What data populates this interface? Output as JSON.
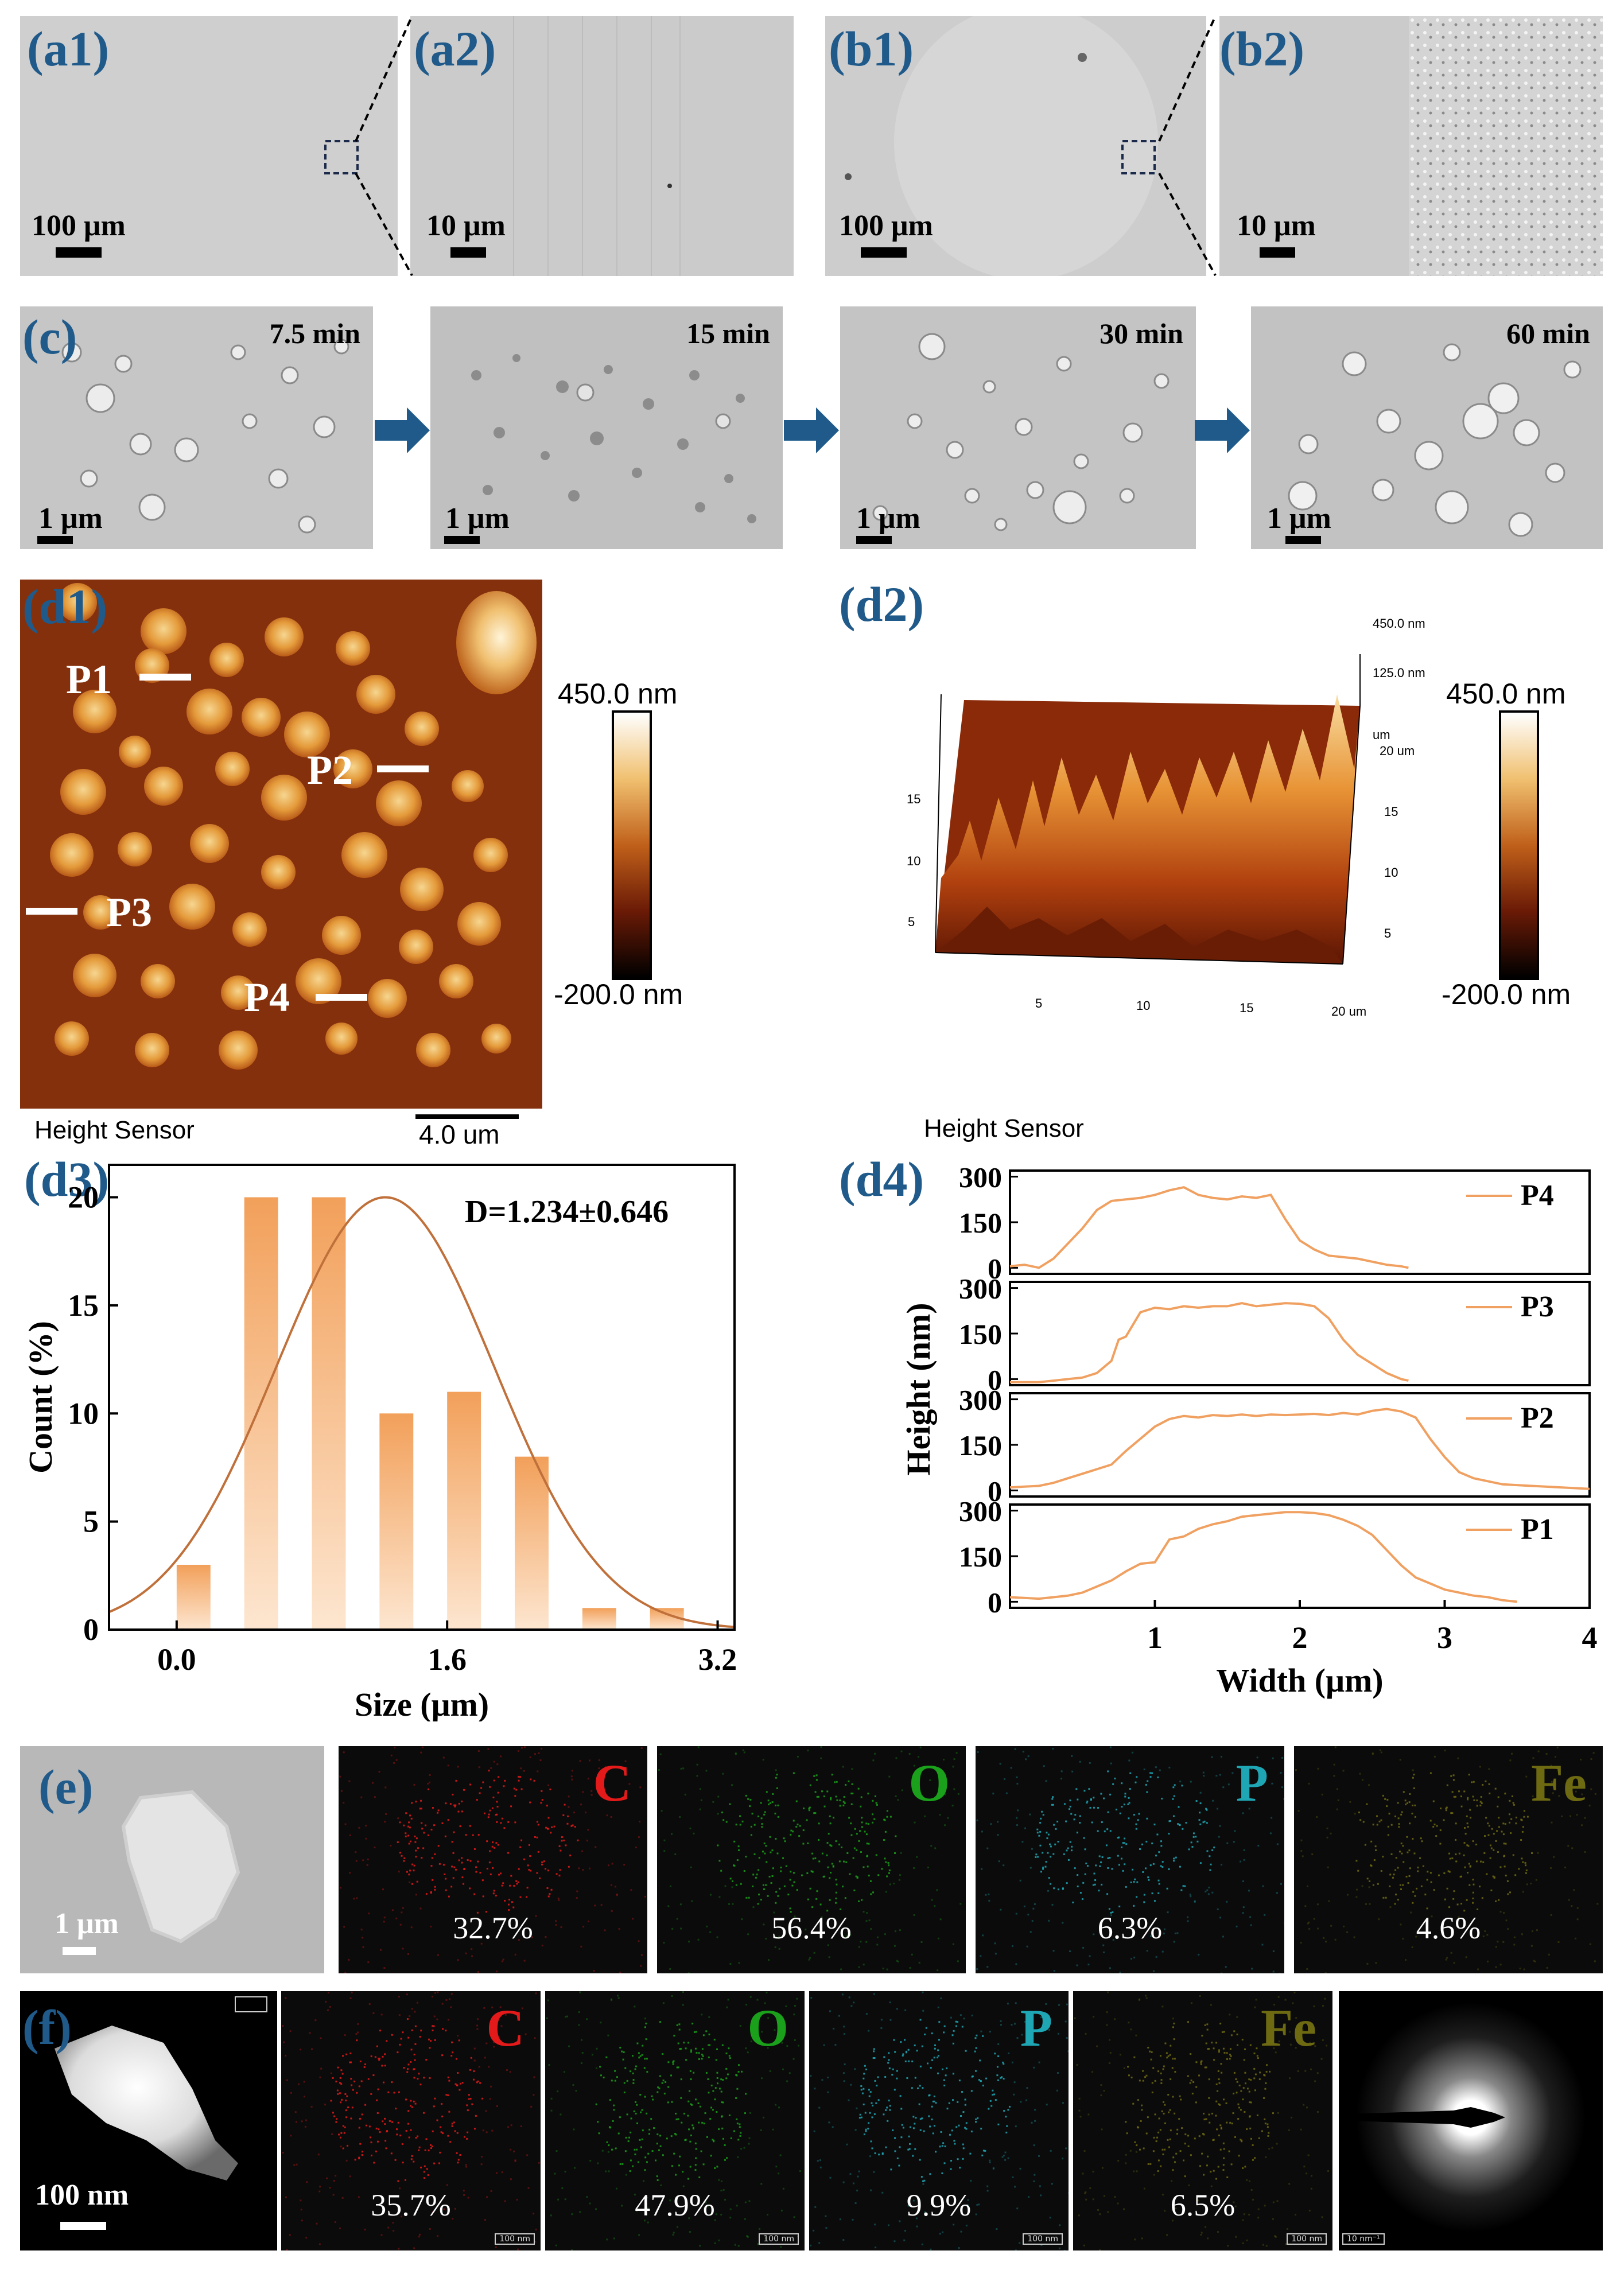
{
  "panels": {
    "a1": {
      "label": "(a1)",
      "scale": "100 μm"
    },
    "a2": {
      "label": "(a2)",
      "scale": "10 μm"
    },
    "b1": {
      "label": "(b1)",
      "scale": "100 μm"
    },
    "b2": {
      "label": "(b2)",
      "scale": "10 μm"
    },
    "c": {
      "label": "(c)",
      "frames": [
        {
          "time": "7.5 min",
          "scale": "1 μm"
        },
        {
          "time": "15 min",
          "scale": "1 μm"
        },
        {
          "time": "30 min",
          "scale": "1 μm"
        },
        {
          "time": "60 min",
          "scale": "1 μm"
        }
      ]
    },
    "d1": {
      "label": "(d1)",
      "markers": [
        "P1",
        "P2",
        "P3",
        "P4"
      ],
      "colorbar_max": "450.0 nm",
      "colorbar_min": "-200.0 nm",
      "sensor": "Height Sensor",
      "scale": "4.0 um"
    },
    "d2": {
      "label": "(d2)",
      "colorbar_max": "450.0 nm",
      "colorbar_min": "-200.0 nm",
      "sensor": "Height Sensor",
      "z_top": "450.0 nm",
      "z_mid": "125.0 nm",
      "unit": "um",
      "y_ticks": [
        "15",
        "10",
        "5"
      ],
      "x_ticks": [
        "5",
        "10",
        "15",
        "20 um"
      ],
      "r_ticks": [
        "20 um",
        "15",
        "10",
        "5"
      ]
    },
    "e": {
      "label": "(e)",
      "scale": "1 μm",
      "maps": [
        {
          "element": "C",
          "percent": "32.7%",
          "color": "#e41a1a"
        },
        {
          "element": "O",
          "percent": "56.4%",
          "color": "#1aa01a"
        },
        {
          "element": "P",
          "percent": "6.3%",
          "color": "#1fa6b4"
        },
        {
          "element": "Fe",
          "percent": "4.6%",
          "color": "#6e6a12"
        }
      ]
    },
    "f": {
      "label": "(f)",
      "scale": "100 nm",
      "maps": [
        {
          "element": "C",
          "percent": "35.7%",
          "color": "#e41a1a"
        },
        {
          "element": "O",
          "percent": "47.9%",
          "color": "#1aa01a"
        },
        {
          "element": "P",
          "percent": "9.9%",
          "color": "#1fa6b4"
        },
        {
          "element": "Fe",
          "percent": "6.5%",
          "color": "#6e6a12"
        }
      ],
      "map_scale": "100 nm",
      "saed_scale": "10 nm⁻¹"
    }
  },
  "chart_data": [
    {
      "id": "d3",
      "label": "(d3)",
      "type": "bar",
      "annotation": "D=1.234±0.646",
      "xlabel": "Size (μm)",
      "ylabel": "Count (%)",
      "xlim": [
        -0.4,
        3.3
      ],
      "ylim": [
        0,
        21.5
      ],
      "xticks": [
        0.0,
        1.6,
        3.2
      ],
      "xtick_labels": [
        "0.0",
        "1.6",
        "3.2"
      ],
      "yticks": [
        0,
        5,
        10,
        15,
        20
      ],
      "bar_width": 0.2,
      "bars": [
        {
          "x": 0.1,
          "value": 3
        },
        {
          "x": 0.5,
          "value": 20
        },
        {
          "x": 0.9,
          "value": 20
        },
        {
          "x": 1.3,
          "value": 10
        },
        {
          "x": 1.7,
          "value": 11
        },
        {
          "x": 2.1,
          "value": 8
        },
        {
          "x": 2.5,
          "value": 1
        },
        {
          "x": 2.9,
          "value": 1
        }
      ],
      "fit": {
        "type": "gaussian",
        "mean": 1.234,
        "sd": 0.646,
        "peak": 20
      },
      "bar_color": "#f2a05a",
      "line_color": "#c0703a"
    },
    {
      "id": "d4",
      "label": "(d4)",
      "type": "line",
      "xlabel": "Width (μm)",
      "ylabel": "Height (nm)",
      "xlim": [
        0,
        4
      ],
      "ylim": [
        -20,
        320
      ],
      "xticks": [
        1,
        2,
        3,
        4
      ],
      "yticks": [
        0,
        150,
        300
      ],
      "line_color": "#f0a060",
      "series": [
        {
          "name": "P4",
          "x": [
            0,
            0.1,
            0.2,
            0.3,
            0.4,
            0.5,
            0.6,
            0.7,
            0.8,
            0.9,
            1.0,
            1.1,
            1.2,
            1.3,
            1.4,
            1.5,
            1.6,
            1.7,
            1.8,
            1.9,
            2.0,
            2.1,
            2.2,
            2.3,
            2.4,
            2.5,
            2.6,
            2.7,
            2.75
          ],
          "y": [
            5,
            10,
            0,
            30,
            80,
            130,
            190,
            220,
            225,
            230,
            240,
            255,
            265,
            240,
            230,
            225,
            235,
            230,
            240,
            160,
            90,
            60,
            40,
            35,
            30,
            20,
            10,
            5,
            0
          ]
        },
        {
          "name": "P3",
          "x": [
            0,
            0.1,
            0.2,
            0.3,
            0.4,
            0.5,
            0.6,
            0.7,
            0.75,
            0.8,
            0.9,
            1.0,
            1.1,
            1.2,
            1.3,
            1.4,
            1.5,
            1.6,
            1.7,
            1.8,
            1.9,
            2.0,
            2.1,
            2.2,
            2.3,
            2.4,
            2.5,
            2.6,
            2.7,
            2.75
          ],
          "y": [
            -10,
            -10,
            -10,
            -5,
            0,
            5,
            20,
            60,
            130,
            140,
            220,
            235,
            230,
            240,
            235,
            240,
            240,
            250,
            240,
            245,
            250,
            248,
            240,
            200,
            130,
            80,
            50,
            20,
            0,
            -5
          ]
        },
        {
          "name": "P2",
          "x": [
            0,
            0.2,
            0.3,
            0.4,
            0.5,
            0.6,
            0.7,
            0.8,
            0.9,
            1.0,
            1.1,
            1.2,
            1.3,
            1.4,
            1.5,
            1.6,
            1.7,
            1.8,
            1.9,
            2.0,
            2.1,
            2.2,
            2.3,
            2.4,
            2.5,
            2.6,
            2.7,
            2.8,
            2.9,
            3.0,
            3.1,
            3.2,
            3.4,
            3.6,
            3.8,
            4.0
          ],
          "y": [
            10,
            15,
            25,
            40,
            55,
            70,
            85,
            130,
            170,
            210,
            235,
            245,
            240,
            248,
            245,
            250,
            245,
            250,
            248,
            250,
            252,
            248,
            255,
            250,
            262,
            268,
            260,
            240,
            170,
            110,
            60,
            40,
            20,
            15,
            10,
            5
          ]
        },
        {
          "name": "P1",
          "x": [
            0,
            0.2,
            0.3,
            0.4,
            0.5,
            0.6,
            0.7,
            0.8,
            0.9,
            1.0,
            1.1,
            1.2,
            1.3,
            1.4,
            1.5,
            1.6,
            1.7,
            1.8,
            1.9,
            2.0,
            2.1,
            2.2,
            2.3,
            2.4,
            2.5,
            2.6,
            2.7,
            2.8,
            2.9,
            3.0,
            3.1,
            3.2,
            3.3,
            3.4,
            3.5
          ],
          "y": [
            15,
            10,
            15,
            20,
            30,
            50,
            70,
            100,
            125,
            130,
            205,
            215,
            240,
            255,
            265,
            280,
            285,
            290,
            295,
            295,
            292,
            285,
            270,
            250,
            220,
            170,
            120,
            80,
            60,
            40,
            30,
            20,
            15,
            5,
            0
          ]
        }
      ]
    }
  ]
}
